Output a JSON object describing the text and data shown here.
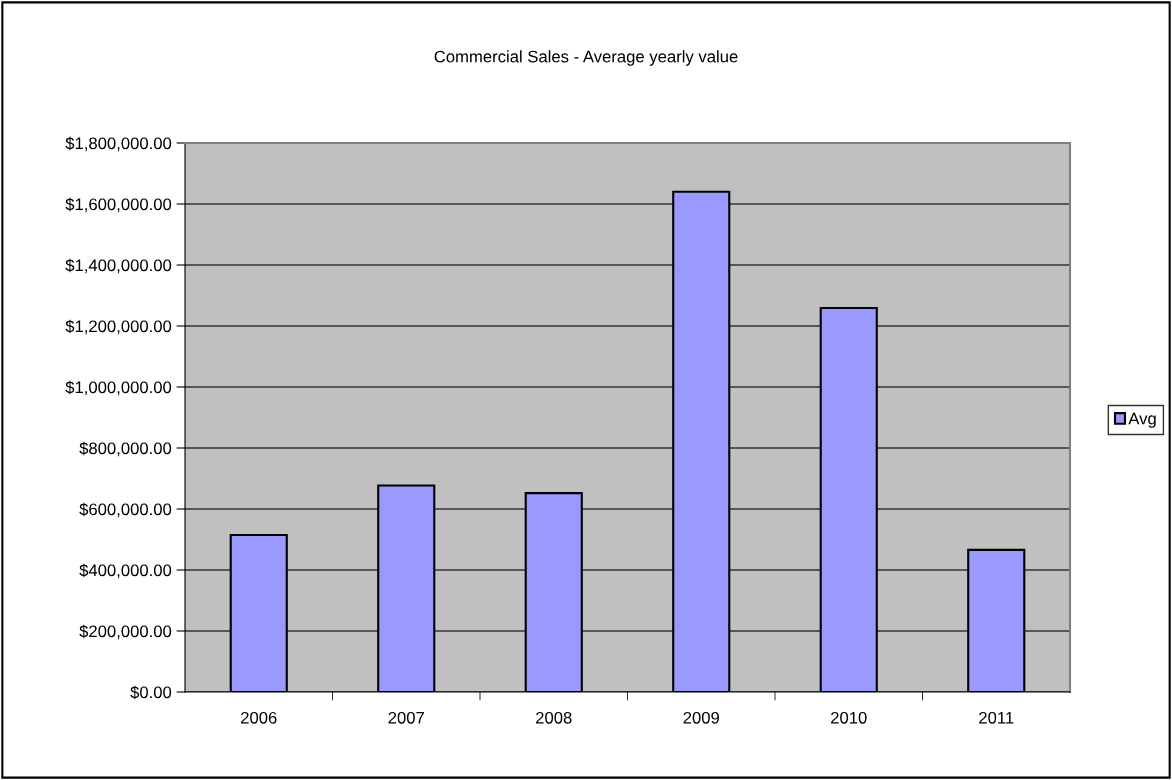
{
  "chart_data": {
    "type": "bar",
    "title": "Commercial Sales - Average yearly value",
    "categories": [
      "2006",
      "2007",
      "2008",
      "2009",
      "2010",
      "2011"
    ],
    "series": [
      {
        "name": "Avg",
        "color": "#9999ff",
        "values": [
          515000,
          677000,
          652000,
          1640000,
          1259000,
          466000
        ]
      }
    ],
    "ylim": [
      0,
      1800000
    ],
    "yticks": [
      {
        "value": 0,
        "label": "$0.00"
      },
      {
        "value": 200000,
        "label": "$200,000.00"
      },
      {
        "value": 400000,
        "label": "$400,000.00"
      },
      {
        "value": 600000,
        "label": "$600,000.00"
      },
      {
        "value": 800000,
        "label": "$800,000.00"
      },
      {
        "value": 1000000,
        "label": "$1,000,000.00"
      },
      {
        "value": 1200000,
        "label": "$1,200,000.00"
      },
      {
        "value": 1400000,
        "label": "$1,400,000.00"
      },
      {
        "value": 1600000,
        "label": "$1,600,000.00"
      },
      {
        "value": 1800000,
        "label": "$1,800,000.00"
      }
    ],
    "grid": "y",
    "legend": "right"
  }
}
